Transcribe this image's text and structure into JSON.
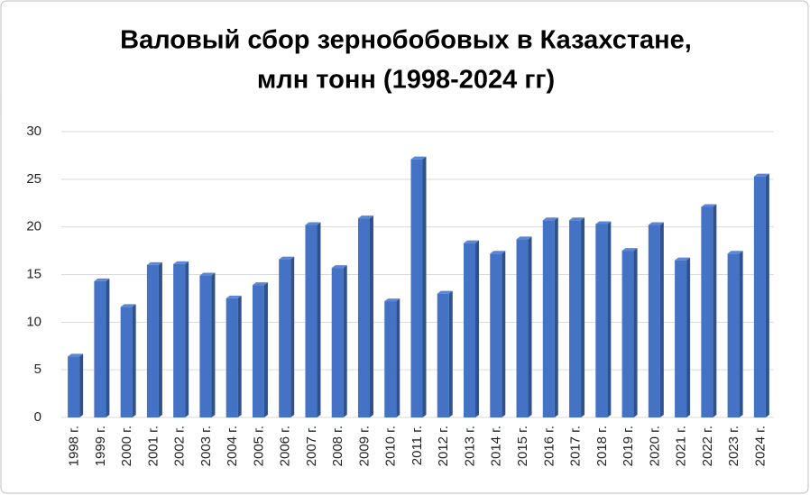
{
  "chart_data": {
    "type": "bar",
    "title": [
      "Валовый сбор зернобобовых в Казахстане,",
      "млн тонн (1998-2024 гг)"
    ],
    "categories": [
      "1998 г.",
      "1999 г.",
      "2000 г.",
      "2001 г.",
      "2002 г.",
      "2003 г.",
      "2004 г.",
      "2005 г.",
      "2006 г.",
      "2007 г.",
      "2008 г.",
      "2009 г.",
      "2010 г.",
      "2011 г.",
      "2012 г.",
      "2013 г.",
      "2014 г.",
      "2015 г.",
      "2016 г.",
      "2017 г.",
      "2018 г.",
      "2019 г.",
      "2020 г.",
      "2021 г.",
      "2022 г.",
      "2023 г.",
      "2024 г."
    ],
    "values": [
      6.4,
      14.3,
      11.6,
      16.0,
      16.1,
      14.9,
      12.5,
      13.9,
      16.6,
      20.2,
      15.7,
      20.9,
      12.2,
      27.1,
      13.0,
      18.3,
      17.2,
      18.7,
      20.7,
      20.7,
      20.3,
      17.5,
      20.2,
      16.5,
      22.1,
      17.2,
      25.3
    ],
    "color": "#4472c4",
    "ylim": [
      0,
      30
    ],
    "yticks": [
      0,
      5,
      10,
      15,
      20,
      25,
      30
    ],
    "grid": true
  }
}
